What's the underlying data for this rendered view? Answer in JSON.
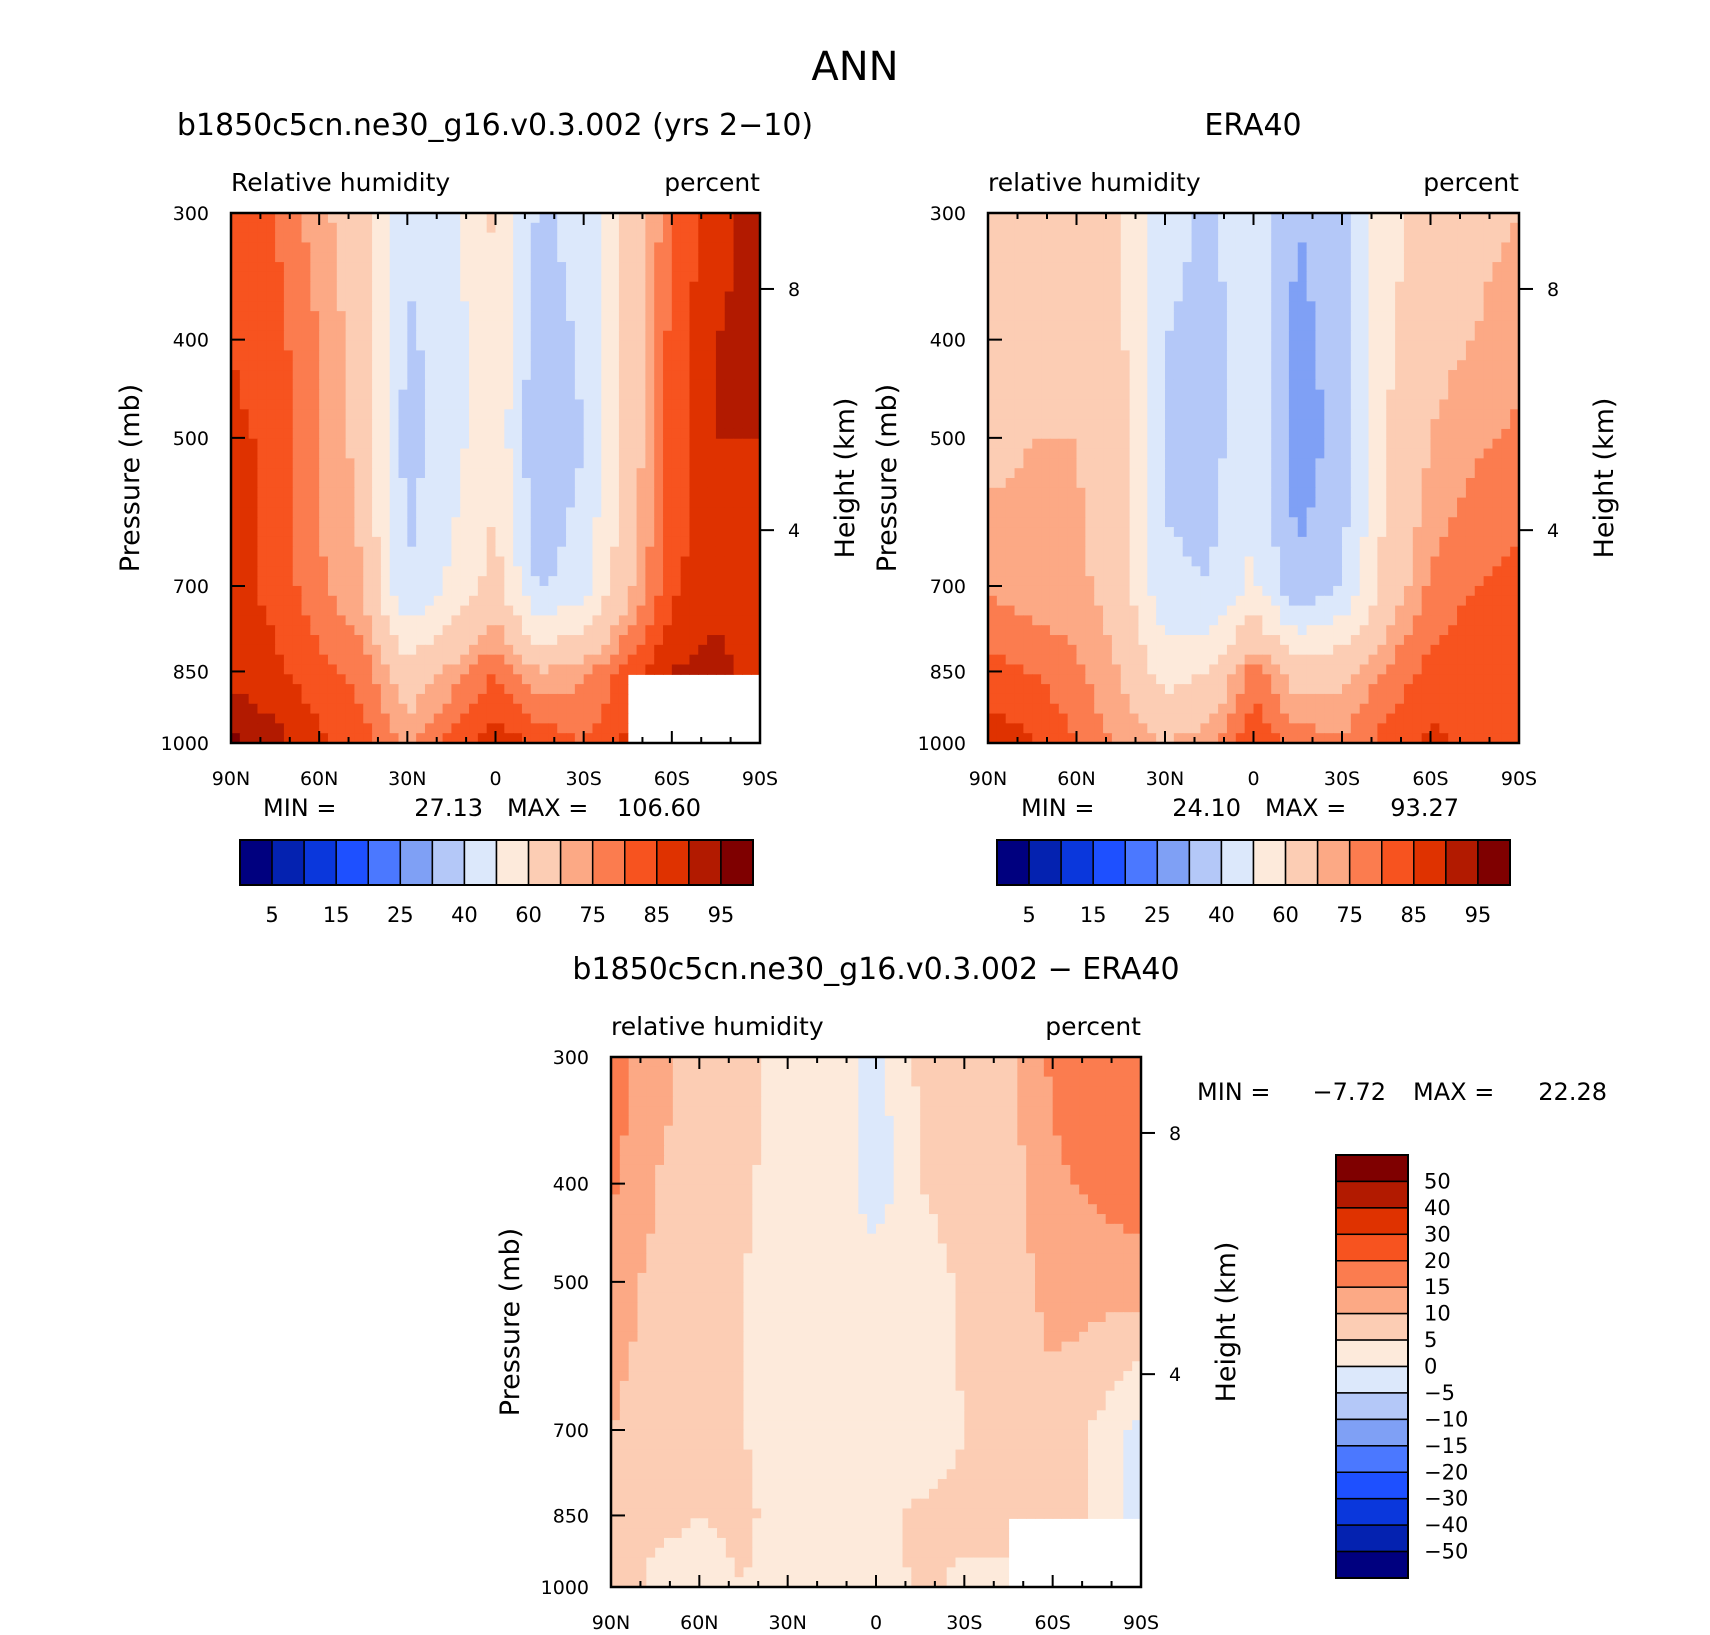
{
  "figure": {
    "title": "ANN"
  },
  "palettes": {
    "rh": [
      "#00007f",
      "#0422b0",
      "#0a37dc",
      "#1e50ff",
      "#4b78ff",
      "#7fa0f5",
      "#b4c8f8",
      "#dce8fb",
      "#fdeadb",
      "#fccdb4",
      "#fca985",
      "#fb7c4f",
      "#f7531f",
      "#df3200",
      "#b21a00",
      "#7f0000"
    ],
    "diff": [
      "#00007f",
      "#0422b0",
      "#0a37dc",
      "#1e50ff",
      "#4b78ff",
      "#7fa0f5",
      "#b4c8f8",
      "#dce8fb",
      "#fdeadb",
      "#fccdb4",
      "#fca985",
      "#fb7c4f",
      "#f7531f",
      "#df3200",
      "#b21a00",
      "#7f0000"
    ]
  },
  "chart_data": [
    {
      "type": "heatmap",
      "title": "b1850c5cn.ne30_g16.v0.3.002 (yrs 2−10)",
      "left_label": "Relative humidity",
      "right_label": "percent",
      "xlabel": "",
      "ylabel": "Pressure (mb)",
      "y2label": "Height (km)",
      "x_ticks": [
        "90N",
        "60N",
        "30N",
        "0",
        "30S",
        "60S",
        "90S"
      ],
      "y_ticks": [
        "300",
        "400",
        "500",
        "700",
        "850",
        "1000"
      ],
      "y2_ticks": [
        "8",
        "4"
      ],
      "min_label": "MIN =",
      "min": "27.13",
      "max_label": "MAX =",
      "max": "106.60",
      "colorbar_labels": [
        "5",
        "15",
        "25",
        "40",
        "60",
        "75",
        "85",
        "95"
      ],
      "lat": [
        90,
        75,
        60,
        45,
        30,
        15,
        0,
        -15,
        -30,
        -45,
        -60,
        -75,
        -90
      ],
      "lev": [
        300,
        400,
        500,
        700,
        850,
        1000
      ],
      "values": [
        [
          82,
          80,
          72,
          65,
          42,
          48,
          62,
          38,
          44,
          62,
          80,
          88,
          92
        ],
        [
          85,
          82,
          75,
          66,
          38,
          45,
          58,
          34,
          42,
          64,
          82,
          90,
          92
        ],
        [
          86,
          84,
          74,
          68,
          36,
          46,
          58,
          30,
          40,
          64,
          82,
          90,
          90
        ],
        [
          86,
          84,
          76,
          70,
          40,
          52,
          64,
          38,
          46,
          68,
          84,
          88,
          86
        ],
        [
          88,
          86,
          82,
          78,
          64,
          72,
          80,
          70,
          74,
          82,
          90,
          92,
          88
        ],
        [
          96,
          92,
          86,
          82,
          74,
          82,
          88,
          84,
          80,
          86,
          null,
          null,
          null
        ]
      ]
    },
    {
      "type": "heatmap",
      "title": "ERA40",
      "left_label": "relative humidity",
      "right_label": "percent",
      "xlabel": "",
      "ylabel": "Pressure (mb)",
      "y2label": "Height (km)",
      "x_ticks": [
        "90N",
        "60N",
        "30N",
        "0",
        "30S",
        "60S",
        "90S"
      ],
      "y_ticks": [
        "300",
        "400",
        "500",
        "700",
        "850",
        "1000"
      ],
      "y2_ticks": [
        "8",
        "4"
      ],
      "min_label": "MIN =",
      "min": "24.10",
      "max_label": "MAX =",
      "max": "93.27",
      "colorbar_labels": [
        "5",
        "15",
        "25",
        "40",
        "60",
        "75",
        "85",
        "95"
      ],
      "lat": [
        90,
        75,
        60,
        45,
        30,
        15,
        0,
        -15,
        -30,
        -45,
        -60,
        -75,
        -90
      ],
      "lev": [
        300,
        400,
        500,
        700,
        850,
        1000
      ],
      "values": [
        [
          62,
          66,
          68,
          60,
          44,
          38,
          48,
          30,
          38,
          56,
          66,
          68,
          70
        ],
        [
          66,
          68,
          70,
          62,
          40,
          36,
          46,
          26,
          36,
          58,
          68,
          70,
          74
        ],
        [
          68,
          70,
          70,
          64,
          38,
          36,
          48,
          24,
          34,
          60,
          70,
          74,
          76
        ],
        [
          74,
          72,
          72,
          66,
          42,
          40,
          52,
          32,
          40,
          64,
          76,
          80,
          82
        ],
        [
          82,
          80,
          76,
          70,
          56,
          60,
          78,
          66,
          68,
          76,
          82,
          84,
          84
        ],
        [
          88,
          86,
          80,
          74,
          70,
          74,
          84,
          78,
          76,
          82,
          86,
          84,
          84
        ]
      ]
    },
    {
      "type": "heatmap",
      "title": "b1850c5cn.ne30_g16.v0.3.002 − ERA40",
      "left_label": "relative humidity",
      "right_label": "percent",
      "xlabel": "",
      "ylabel": "Pressure (mb)",
      "y2label": "Height (km)",
      "x_ticks": [
        "90N",
        "60N",
        "30N",
        "0",
        "30S",
        "60S",
        "90S"
      ],
      "y_ticks": [
        "300",
        "400",
        "500",
        "700",
        "850",
        "1000"
      ],
      "y2_ticks": [
        "8",
        "4"
      ],
      "min_label": "MIN =",
      "min": "−7.72",
      "max_label": "MAX =",
      "max": "22.28",
      "colorbar_labels": [
        "50",
        "40",
        "30",
        "20",
        "15",
        "10",
        "5",
        "0",
        "−5",
        "−10",
        "−15",
        "−20",
        "−30",
        "−40",
        "−50"
      ],
      "lat": [
        90,
        75,
        60,
        45,
        30,
        15,
        0,
        -15,
        -30,
        -45,
        -60,
        -75,
        -90
      ],
      "lev": [
        300,
        400,
        500,
        700,
        850,
        1000
      ],
      "values": [
        [
          18,
          12,
          8,
          7,
          3,
          4,
          -2,
          6,
          9,
          8,
          16,
          18,
          20
        ],
        [
          16,
          10,
          7,
          6,
          2,
          3,
          -3,
          5,
          8,
          8,
          14,
          16,
          18
        ],
        [
          12,
          9,
          6,
          5,
          2,
          1,
          3,
          2,
          6,
          7,
          12,
          12,
          12
        ],
        [
          10,
          8,
          6,
          5,
          3,
          2,
          4,
          2,
          5,
          6,
          8,
          4,
          -2
        ],
        [
          6,
          6,
          5,
          6,
          3,
          4,
          4,
          6,
          6,
          10,
          8,
          4,
          -2
        ],
        [
          8,
          4,
          3,
          5,
          2,
          4,
          2,
          6,
          4,
          2,
          null,
          null,
          null
        ]
      ]
    }
  ]
}
